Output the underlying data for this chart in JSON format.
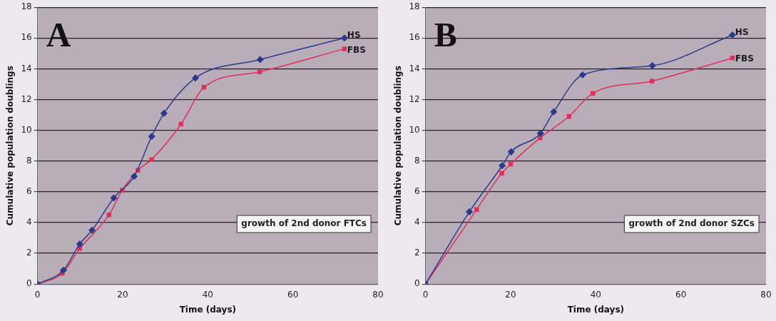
{
  "chart_data": [
    {
      "type": "line",
      "xlabel": "Time (days)",
      "ylabel": "Cumulative population doublings",
      "xlim": [
        0,
        80
      ],
      "xticks": [
        0,
        20,
        40,
        60,
        80
      ],
      "ylim": [
        0,
        18
      ],
      "yticks": [
        0,
        2,
        4,
        6,
        8,
        10,
        12,
        14,
        16,
        18
      ],
      "grid": "y",
      "legend": false,
      "annotations": [
        "A",
        "growth of 2nd donor FTCs"
      ],
      "series": [
        {
          "name": "HS",
          "color": "#2a3a8c",
          "marker": "diamond",
          "x": [
            0,
            6.1,
            9.9,
            12.8,
            17.9,
            22.7,
            26.8,
            29.7,
            37.1,
            52.3,
            72.1
          ],
          "values": [
            0,
            0.9,
            2.6,
            3.5,
            5.6,
            7.0,
            9.6,
            11.1,
            13.4,
            14.6,
            16.0
          ]
        },
        {
          "name": "FBS",
          "color": "#e0305a",
          "marker": "square",
          "x": [
            0,
            5.8,
            9.9,
            16.8,
            19.9,
            23.6,
            26.8,
            33.7,
            39.1,
            52.2,
            72.1
          ],
          "values": [
            0,
            0.7,
            2.3,
            4.5,
            6.1,
            7.4,
            8.1,
            10.4,
            12.8,
            13.8,
            15.3
          ]
        }
      ]
    },
    {
      "type": "line",
      "xlabel": "Time (days)",
      "ylabel": "Cumulative population doublings",
      "xlim": [
        0,
        80
      ],
      "xticks": [
        0,
        20,
        40,
        60,
        80
      ],
      "ylim": [
        0,
        18
      ],
      "yticks": [
        0,
        2,
        4,
        6,
        8,
        10,
        12,
        14,
        16,
        18
      ],
      "grid": "y",
      "legend": false,
      "annotations": [
        "B",
        "growth of 2nd donor SZCs"
      ],
      "series": [
        {
          "name": "HS",
          "color": "#2a3a8c",
          "marker": "diamond",
          "x": [
            0,
            10.3,
            18.0,
            20.1,
            27.0,
            30.1,
            36.9,
            53.3,
            72.1
          ],
          "values": [
            0,
            4.7,
            7.7,
            8.6,
            9.8,
            11.2,
            13.6,
            14.2,
            16.2
          ]
        },
        {
          "name": "FBS",
          "color": "#e0305a",
          "marker": "square",
          "x": [
            0,
            12.0,
            17.9,
            20.0,
            26.9,
            33.7,
            39.3,
            53.2,
            72.1
          ],
          "values": [
            0,
            4.85,
            7.2,
            7.8,
            9.5,
            10.9,
            12.4,
            13.2,
            14.7
          ]
        }
      ]
    }
  ]
}
